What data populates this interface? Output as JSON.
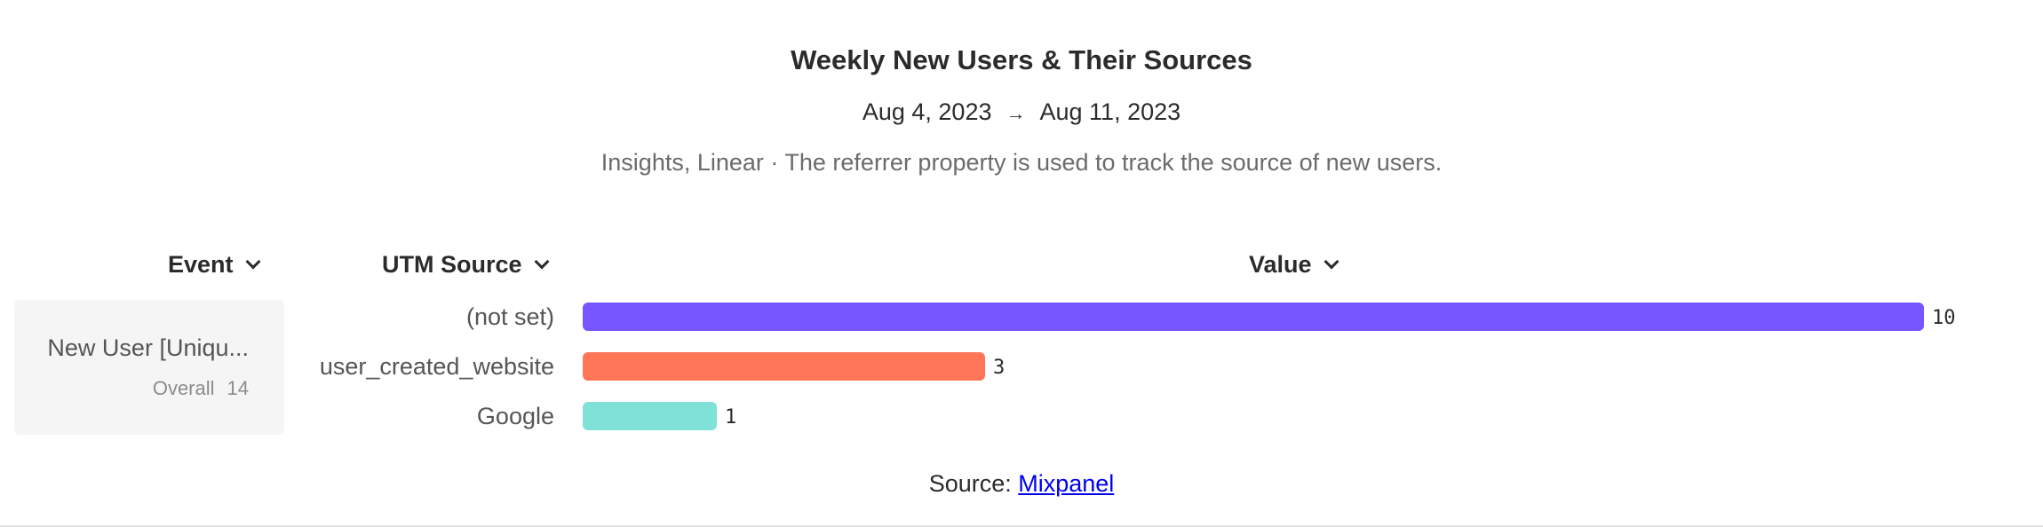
{
  "header": {
    "title": "Weekly New Users & Their Sources",
    "date_start": "Aug 4, 2023",
    "date_arrow": "→",
    "date_end": "Aug 11, 2023",
    "subtitle": "Insights, Linear · The referrer property is used to track the source of new users."
  },
  "columns": {
    "event": "Event",
    "utm_source": "UTM Source",
    "value": "Value"
  },
  "event": {
    "name": "New User [Uniqu...",
    "overall_label": "Overall",
    "overall_value": "14"
  },
  "chart_data": {
    "type": "bar",
    "orientation": "horizontal",
    "categories": [
      "(not set)",
      "user_created_website",
      "Google"
    ],
    "values": [
      10,
      3,
      1
    ],
    "colors": [
      "#7856ff",
      "#ff7557",
      "#80e1d9"
    ],
    "xlim": [
      0,
      10
    ],
    "grid": false
  },
  "footer": {
    "source_prefix": "Source: ",
    "source_link": "Mixpanel"
  },
  "colors": {
    "card_bg": "#f5f5f5",
    "link": "#0000ee"
  }
}
